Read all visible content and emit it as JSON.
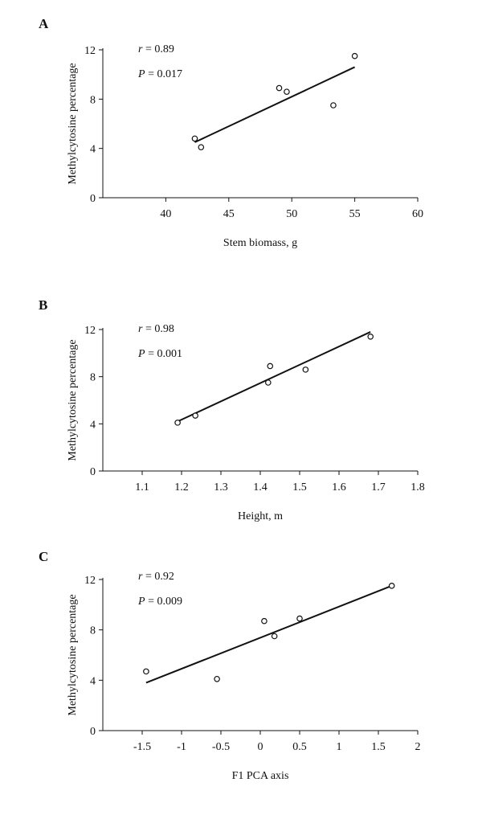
{
  "chart_data": [
    {
      "type": "scatter",
      "panel": "A",
      "xlabel": "Stem biomass, g",
      "ylabel": "Methylcytosine percentage",
      "xlim": [
        35,
        60
      ],
      "ylim": [
        0,
        12
      ],
      "x_ticks": [
        40,
        45,
        50,
        55,
        60
      ],
      "y_ticks": [
        0,
        4,
        8,
        12
      ],
      "x_tick_labels": [
        "40",
        "45",
        "50",
        "55",
        "60"
      ],
      "y_tick_labels": [
        "0",
        "4",
        "8",
        "12"
      ],
      "series": [
        {
          "name": "samples",
          "points": [
            [
              42.3,
              4.8
            ],
            [
              42.8,
              4.1
            ],
            [
              49.0,
              8.9
            ],
            [
              49.6,
              8.6
            ],
            [
              53.3,
              7.5
            ],
            [
              55.0,
              11.5
            ]
          ]
        }
      ],
      "trendline": [
        [
          42.3,
          4.5
        ],
        [
          55.0,
          10.6
        ]
      ],
      "annotations": {
        "r_text": "= 0.89",
        "p_text": "= 0.017"
      }
    },
    {
      "type": "scatter",
      "panel": "B",
      "xlabel": "Height, m",
      "ylabel": "Methylcytosine percentage",
      "xlim": [
        1.0,
        1.8
      ],
      "ylim": [
        0,
        12
      ],
      "x_ticks": [
        1.1,
        1.2,
        1.3,
        1.4,
        1.5,
        1.6,
        1.7,
        1.8
      ],
      "y_ticks": [
        0,
        4,
        8,
        12
      ],
      "x_tick_labels": [
        "1.1",
        "1.2",
        "1.3",
        "1.4",
        "1.5",
        "1.6",
        "1.7",
        "1.8"
      ],
      "y_tick_labels": [
        "0",
        "4",
        "8",
        "12"
      ],
      "series": [
        {
          "name": "samples",
          "points": [
            [
              1.19,
              4.1
            ],
            [
              1.235,
              4.7
            ],
            [
              1.42,
              7.5
            ],
            [
              1.425,
              8.9
            ],
            [
              1.515,
              8.6
            ],
            [
              1.68,
              11.4
            ]
          ]
        }
      ],
      "trendline": [
        [
          1.19,
          4.2
        ],
        [
          1.68,
          11.8
        ]
      ],
      "annotations": {
        "r_text": "= 0.98",
        "p_text": "= 0.001"
      }
    },
    {
      "type": "scatter",
      "panel": "C",
      "xlabel": "F1 PCA axis",
      "ylabel": "Methylcytosine percentage",
      "xlim": [
        -2.0,
        2.0
      ],
      "ylim": [
        0,
        12
      ],
      "x_ticks": [
        -1.5,
        -1,
        -0.5,
        0,
        0.5,
        1,
        1.5,
        2
      ],
      "y_ticks": [
        0,
        4,
        8,
        12
      ],
      "x_tick_labels": [
        "-1.5",
        "-1",
        "-0.5",
        "0",
        "0.5",
        "1",
        "1.5",
        "2"
      ],
      "y_tick_labels": [
        "0",
        "4",
        "8",
        "12"
      ],
      "series": [
        {
          "name": "samples",
          "points": [
            [
              -1.45,
              4.7
            ],
            [
              -0.55,
              4.1
            ],
            [
              0.05,
              8.7
            ],
            [
              0.18,
              7.5
            ],
            [
              0.5,
              8.9
            ],
            [
              1.67,
              11.5
            ]
          ]
        }
      ],
      "trendline": [
        [
          -1.45,
          3.8
        ],
        [
          1.67,
          11.5
        ]
      ],
      "annotations": {
        "r_text": "= 0.92",
        "p_text": "= 0.009"
      }
    }
  ]
}
